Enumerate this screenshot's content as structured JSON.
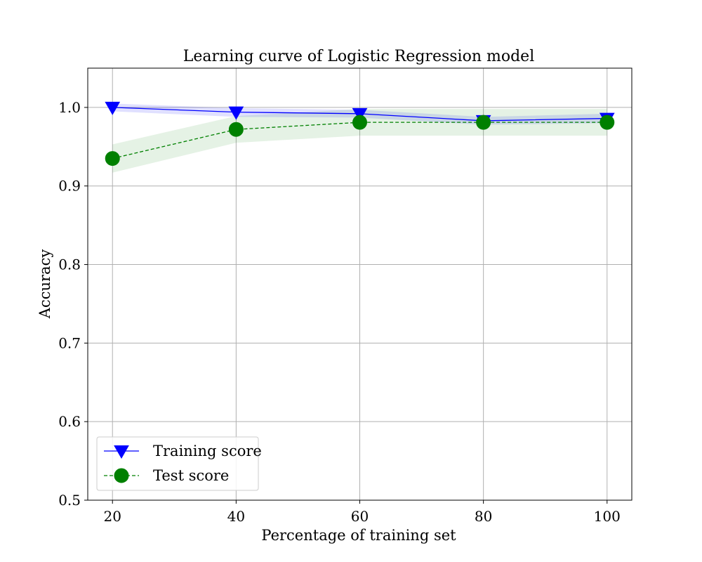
{
  "chart_data": {
    "type": "line",
    "title": "Learning curve of Logistic Regression model",
    "xlabel": "Percentage of training set",
    "ylabel": "Accuracy",
    "xlim": [
      16,
      104
    ],
    "ylim": [
      0.5,
      1.05
    ],
    "x": [
      20,
      40,
      60,
      80,
      100
    ],
    "xticks": [
      "20",
      "40",
      "60",
      "80",
      "100"
    ],
    "yticks": [
      "0.5",
      "0.6",
      "0.7",
      "0.8",
      "0.9",
      "1.0"
    ],
    "grid": true,
    "legend_position": "lower-left",
    "series": [
      {
        "name": "Training score",
        "values": [
          1.0,
          0.994,
          0.992,
          0.983,
          0.986
        ],
        "band_lower": [
          0.995,
          0.988,
          0.987,
          0.978,
          0.98
        ],
        "band_upper": [
          1.005,
          0.999,
          0.997,
          0.988,
          0.992
        ],
        "color": "#0000ff",
        "band_color": "#0000ff",
        "band_opacity": 0.12,
        "line_style": "solid",
        "marker": "triangle-down"
      },
      {
        "name": "Test score",
        "values": [
          0.935,
          0.972,
          0.981,
          0.981,
          0.981
        ],
        "band_lower": [
          0.917,
          0.955,
          0.964,
          0.964,
          0.964
        ],
        "band_upper": [
          0.953,
          0.989,
          0.998,
          0.998,
          0.998
        ],
        "color": "#008000",
        "band_color": "#008000",
        "band_opacity": 0.1,
        "line_style": "dashed",
        "marker": "circle"
      }
    ]
  }
}
